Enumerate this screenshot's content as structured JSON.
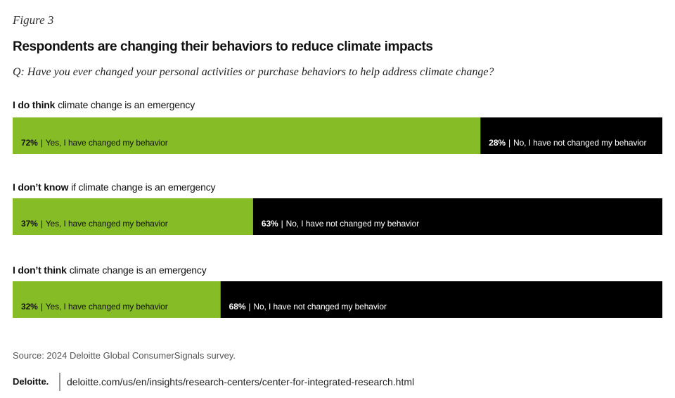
{
  "chart_data": {
    "type": "stacked-bar-horizontal",
    "figure_label": "Figure 3",
    "title": "Respondents are changing their behaviors to reduce climate impacts",
    "subtitle": "Q: Have you ever changed your personal activities or purchase behaviors to help address climate change?",
    "categories": [
      {
        "emphasis": "I do think",
        "text": "climate change is an emergency"
      },
      {
        "emphasis": "I don’t know",
        "text": "if climate change is an emergency"
      },
      {
        "emphasis": "I don’t think",
        "text": "climate change is an emergency"
      }
    ],
    "separator": "|",
    "series": [
      {
        "name": "Yes, I have changed my behavior",
        "color": "#86bc25",
        "values": [
          72,
          37,
          32
        ],
        "value_labels": [
          "72%",
          "37%",
          "32%"
        ]
      },
      {
        "name": "No, I have not changed my behavior",
        "color": "#000000",
        "values": [
          28,
          63,
          68
        ],
        "value_labels": [
          "28%",
          "63%",
          "68%"
        ]
      }
    ],
    "xlim": [
      0,
      100
    ],
    "source": "Source: 2024 Deloitte Global ConsumerSignals survey.",
    "footer": {
      "logo": "Deloitte.",
      "url": "deloitte.com/us/en/insights/research-centers/center-for-integrated-research.html"
    }
  }
}
